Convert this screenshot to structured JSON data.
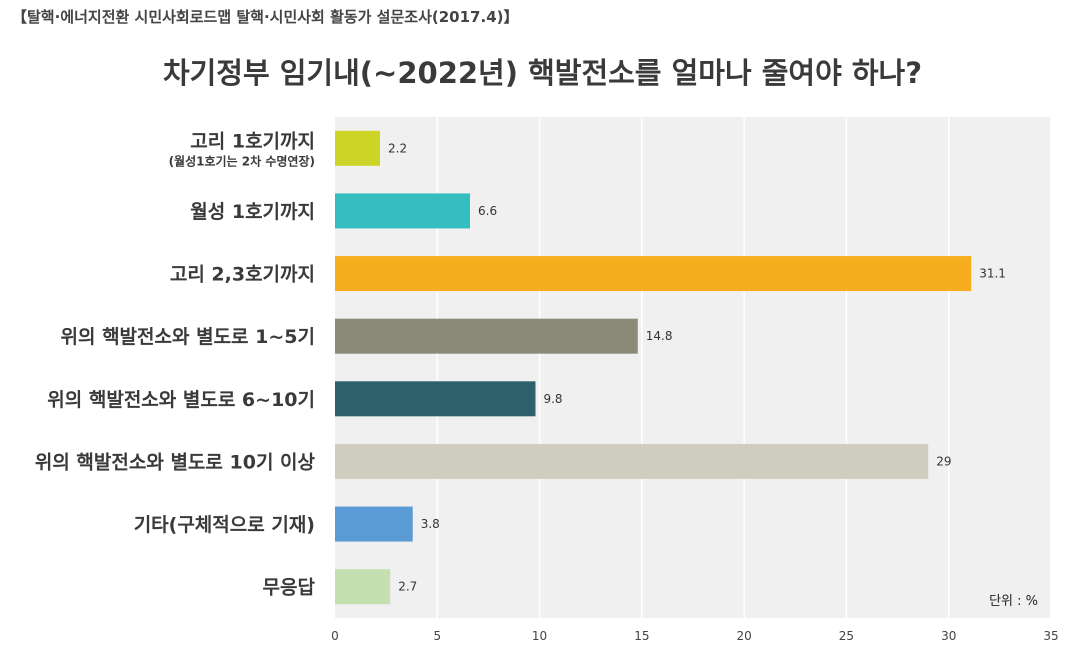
{
  "source": "【탈핵·에너지전환 시민사회로드맵 탈핵·시민사회 활동가 설문조사(2017.4)】",
  "chart_data": {
    "type": "bar",
    "orientation": "horizontal",
    "title": "차기정부 임기내(~2022년) 핵발전소를 얼마나 줄여야 하나?",
    "categories": [
      "고리 1호기까지",
      "월성 1호기까지",
      "고리 2,3호기까지",
      "위의 핵발전소와 별도로 1~5기",
      "위의 핵발전소와 별도로 6~10기",
      "위의 핵발전소와 별도로 10기 이상",
      "기타(구체적으로 기재)",
      "무응답"
    ],
    "category_sublabels": [
      "(월성1호기는 2차 수명연장)",
      "",
      "",
      "",
      "",
      "",
      "",
      ""
    ],
    "values": [
      2.2,
      6.6,
      31.1,
      14.8,
      9.8,
      29,
      3.8,
      2.7
    ],
    "value_labels": [
      "2.2",
      "6.6",
      "31.1",
      "14.8",
      "9.8",
      "29",
      "3.8",
      "2.7"
    ],
    "colors": [
      "#cdd428",
      "#35bec0",
      "#f6ae1f",
      "#8a8a78",
      "#2e606c",
      "#cfcdbf",
      "#5b9bd5",
      "#c4e0b1"
    ],
    "xlim": [
      0,
      35
    ],
    "xticks": [
      0,
      5,
      10,
      15,
      20,
      25,
      30,
      35
    ],
    "unit_label": "단위 : %",
    "grid": true,
    "plot_background": "#f0f0f0"
  }
}
